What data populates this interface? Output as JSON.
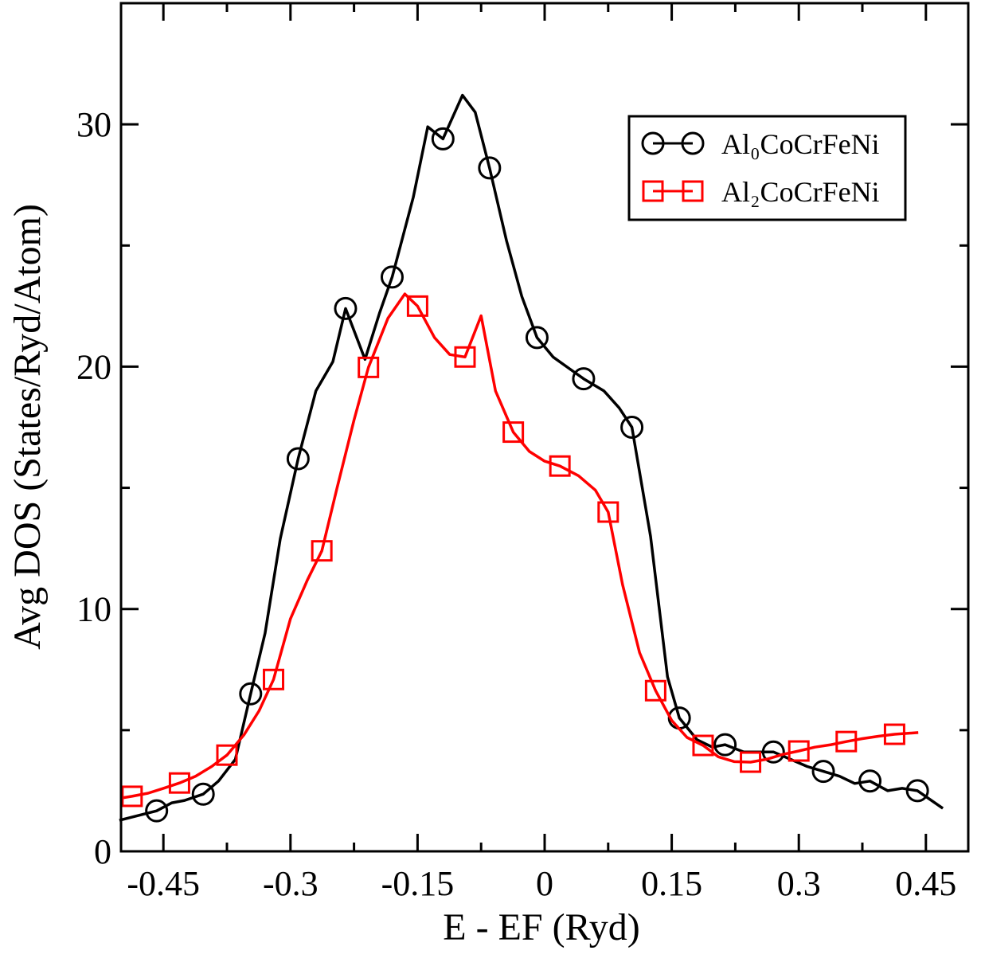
{
  "chart_data": {
    "type": "line",
    "x_label": "E - EF (Ryd)",
    "y_label": "Avg DOS (States/Ryd/Atom)",
    "xlim": [
      -0.5,
      0.5
    ],
    "xticks": [
      -0.45,
      -0.3,
      -0.15,
      0,
      0.15,
      0.3,
      0.45
    ],
    "ylim": [
      0,
      35
    ],
    "yticks": [
      0,
      10,
      20,
      30
    ],
    "legend": "top-right",
    "series": [
      {
        "name": "Al₀CoCrFeNi",
        "color": "#000000",
        "marker": "circle",
        "x": [
          -0.502,
          -0.458,
          -0.44,
          -0.425,
          -0.403,
          -0.385,
          -0.365,
          -0.347,
          -0.33,
          -0.312,
          -0.291,
          -0.27,
          -0.25,
          -0.235,
          -0.212,
          -0.195,
          -0.18,
          -0.155,
          -0.138,
          -0.12,
          -0.097,
          -0.082,
          -0.065,
          -0.045,
          -0.027,
          -0.009,
          0.01,
          0.03,
          0.046,
          0.07,
          0.088,
          0.103,
          0.125,
          0.145,
          0.159,
          0.18,
          0.198,
          0.213,
          0.235,
          0.252,
          0.27,
          0.29,
          0.31,
          0.329,
          0.348,
          0.366,
          0.384,
          0.405,
          0.422,
          0.44,
          0.47
        ],
        "values": [
          1.28,
          1.67,
          2.0,
          2.1,
          2.36,
          2.9,
          3.8,
          6.5,
          9.0,
          12.9,
          16.2,
          19.0,
          20.2,
          22.4,
          20.3,
          22.2,
          23.7,
          27.0,
          29.9,
          29.4,
          31.2,
          30.5,
          28.2,
          25.2,
          22.9,
          21.2,
          20.4,
          19.9,
          19.5,
          19.0,
          18.3,
          17.5,
          13.0,
          7.2,
          5.5,
          4.6,
          4.3,
          4.4,
          4.1,
          4.1,
          4.1,
          3.8,
          3.5,
          3.3,
          3.1,
          2.8,
          2.9,
          2.5,
          2.6,
          2.5,
          1.77
        ]
      },
      {
        "name": "Al₂CoCrFeNi",
        "color": "#ff0000",
        "marker": "square",
        "x": [
          -0.5,
          -0.487,
          -0.468,
          -0.45,
          -0.431,
          -0.412,
          -0.393,
          -0.375,
          -0.355,
          -0.337,
          -0.32,
          -0.3,
          -0.28,
          -0.263,
          -0.245,
          -0.225,
          -0.208,
          -0.185,
          -0.165,
          -0.15,
          -0.13,
          -0.112,
          -0.094,
          -0.075,
          -0.058,
          -0.037,
          -0.018,
          0.0,
          0.018,
          0.04,
          0.06,
          0.075,
          0.092,
          0.112,
          0.131,
          0.15,
          0.168,
          0.187,
          0.205,
          0.224,
          0.243,
          0.262,
          0.281,
          0.3,
          0.319,
          0.338,
          0.356,
          0.375,
          0.394,
          0.413,
          0.441
        ],
        "values": [
          2.2,
          2.27,
          2.4,
          2.6,
          2.82,
          3.1,
          3.5,
          3.97,
          4.8,
          5.8,
          7.09,
          9.6,
          11.2,
          12.4,
          15.0,
          17.8,
          19.97,
          22.0,
          23.0,
          22.5,
          21.2,
          20.5,
          20.4,
          22.1,
          19.0,
          17.3,
          16.5,
          16.1,
          15.9,
          15.5,
          14.9,
          14.0,
          11.0,
          8.2,
          6.63,
          5.4,
          4.7,
          4.37,
          3.9,
          3.7,
          3.68,
          3.8,
          4.0,
          4.14,
          4.3,
          4.4,
          4.53,
          4.65,
          4.75,
          4.83,
          4.9
        ]
      }
    ]
  }
}
